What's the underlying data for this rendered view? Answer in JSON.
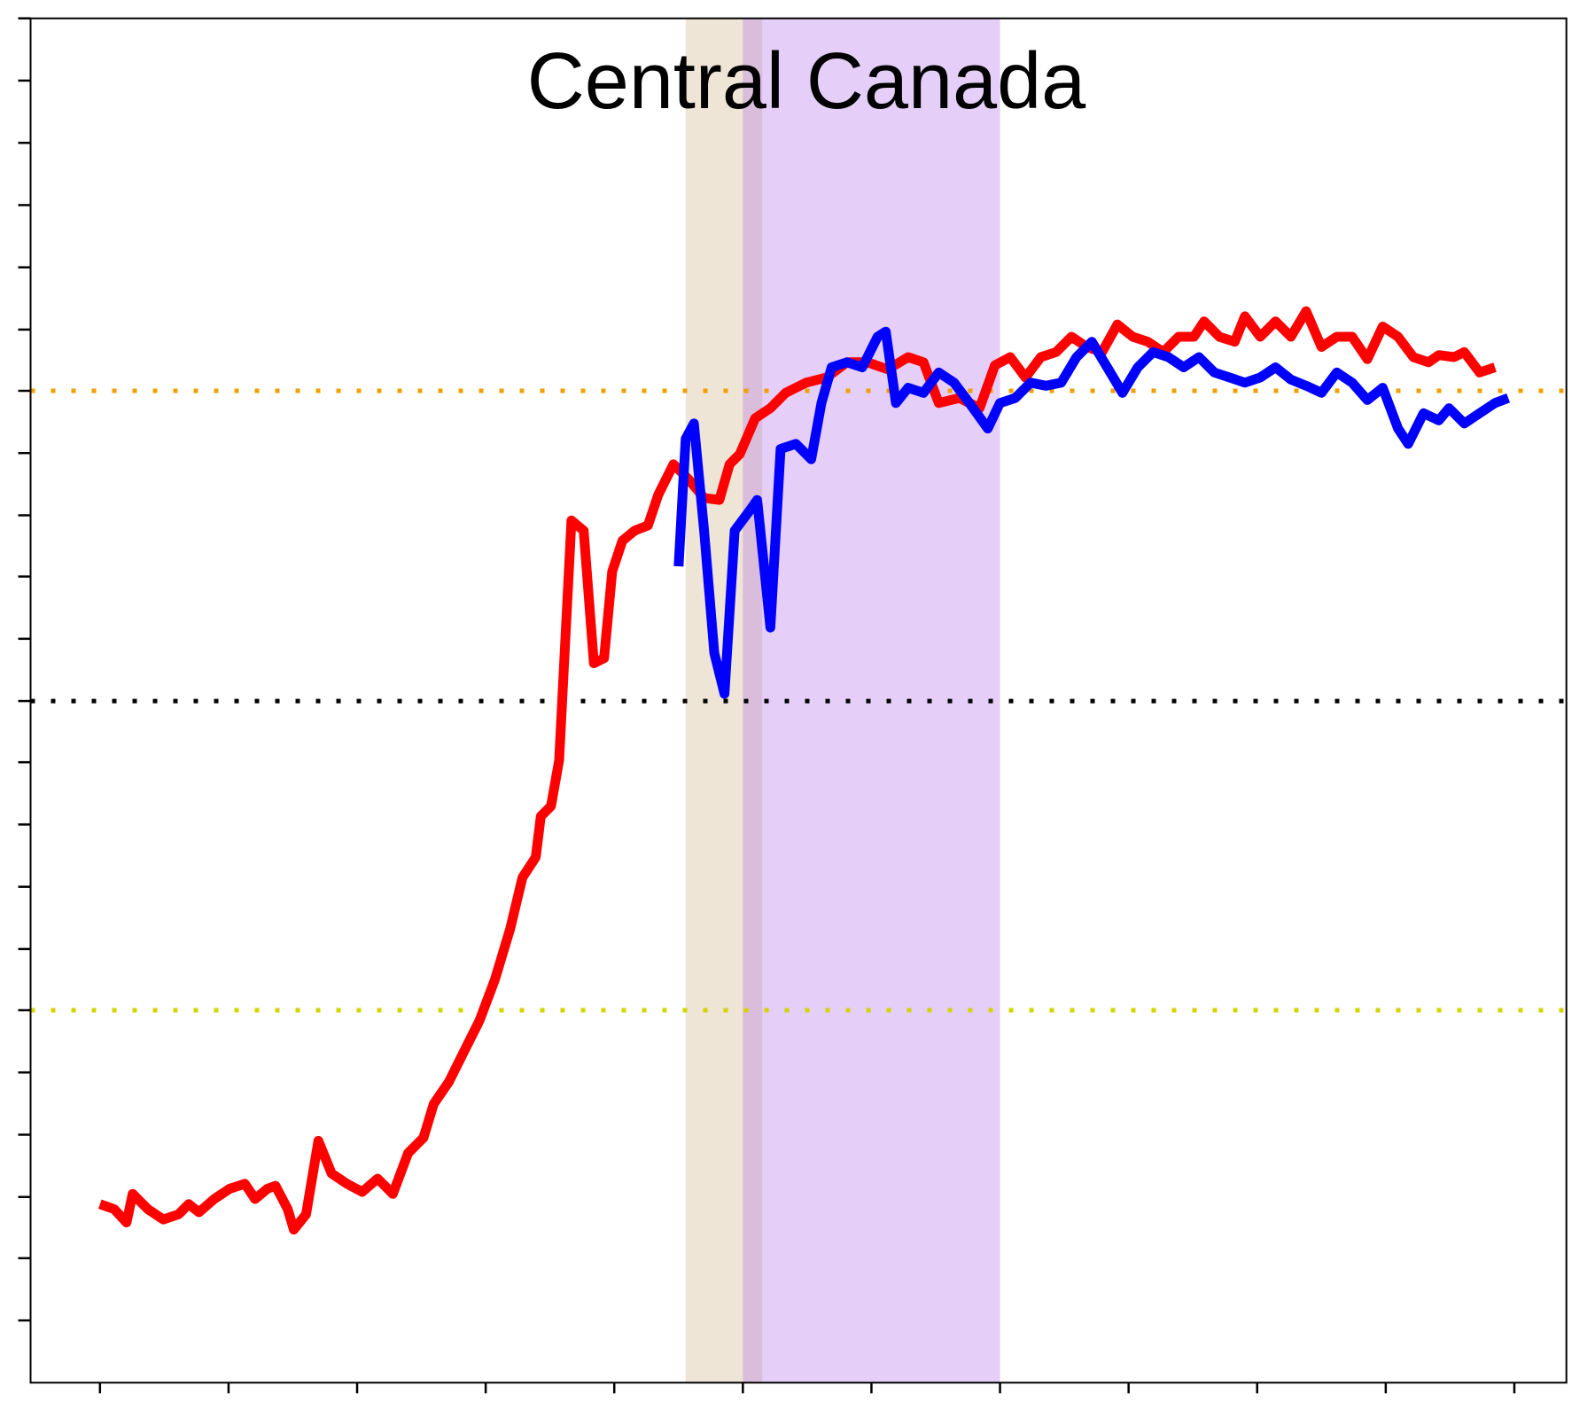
{
  "chart_data": {
    "type": "line",
    "title": "Central Canada",
    "xlim": [
      30,
      1535
    ],
    "xticks": [
      98,
      224,
      350,
      476,
      602,
      728,
      854,
      980,
      1106,
      1232,
      1358,
      1484
    ],
    "ylim": [
      0,
      1337
    ],
    "yticks": [
      61,
      122,
      182,
      243,
      304,
      365,
      425,
      486,
      547,
      608,
      668,
      729,
      790,
      850,
      911,
      972,
      1032,
      1093,
      1154,
      1215,
      1276,
      1337
    ],
    "reference_lines": [
      {
        "value": 972,
        "color": "#f0a000"
      },
      {
        "value": 668,
        "color": "#000000"
      },
      {
        "value": 365,
        "color": "#d4d400"
      }
    ],
    "spans": [
      {
        "range": [
          672,
          747
        ],
        "color": "#c8a878"
      },
      {
        "range": [
          728,
          980
        ],
        "color": "#a860e8"
      }
    ],
    "series": [
      {
        "color": "#ff0000",
        "x": [
          98,
          112,
          124,
          130,
          145,
          160,
          175,
          185,
          195,
          210,
          225,
          240,
          250,
          262,
          270,
          282,
          288,
          300,
          312,
          325,
          340,
          355,
          370,
          385,
          400,
          415,
          425,
          440,
          455,
          470,
          485,
          500,
          512,
          525,
          530,
          540,
          548,
          560,
          572,
          582,
          592,
          600,
          610,
          622,
          635,
          645,
          660,
          675,
          690,
          705,
          715,
          725,
          740,
          755,
          770,
          790,
          810,
          830,
          850,
          870,
          890,
          905,
          920,
          940,
          960,
          975,
          990,
          1005,
          1020,
          1035,
          1050,
          1065,
          1080,
          1095,
          1110,
          1125,
          1140,
          1155,
          1170,
          1180,
          1195,
          1210,
          1220,
          1235,
          1250,
          1265,
          1280,
          1295,
          1310,
          1325,
          1340,
          1355,
          1370,
          1385,
          1400,
          1410,
          1425,
          1435,
          1450,
          1465
        ],
        "values": [
          175,
          170,
          157,
          185,
          170,
          160,
          165,
          175,
          167,
          180,
          190,
          195,
          180,
          190,
          193,
          170,
          150,
          165,
          237,
          205,
          195,
          187,
          200,
          185,
          225,
          240,
          273,
          295,
          325,
          355,
          395,
          445,
          495,
          515,
          555,
          565,
          610,
          845,
          835,
          705,
          710,
          795,
          825,
          835,
          840,
          870,
          900,
          885,
          867,
          865,
          900,
          910,
          945,
          955,
          970,
          980,
          985,
          1000,
          1000,
          993,
          1005,
          1000,
          960,
          965,
          955,
          997,
          1005,
          985,
          1005,
          1010,
          1025,
          1015,
          1010,
          1037,
          1025,
          1020,
          1010,
          1025,
          1025,
          1040,
          1025,
          1020,
          1045,
          1025,
          1040,
          1025,
          1050,
          1015,
          1025,
          1025,
          1003,
          1035,
          1025,
          1005,
          1000,
          1007,
          1005,
          1010,
          990,
          995
        ]
      },
      {
        "color": "#0000ff",
        "x": [
          665,
          672,
          680,
          690,
          700,
          710,
          720,
          735,
          742,
          755,
          765,
          780,
          795,
          805,
          815,
          830,
          845,
          860,
          868,
          878,
          890,
          905,
          920,
          935,
          950,
          968,
          980,
          995,
          1010,
          1025,
          1040,
          1055,
          1070,
          1085,
          1100,
          1115,
          1130,
          1145,
          1160,
          1175,
          1190,
          1205,
          1220,
          1235,
          1250,
          1265,
          1280,
          1295,
          1310,
          1325,
          1340,
          1355,
          1370,
          1380,
          1395,
          1410,
          1420,
          1435,
          1450,
          1465,
          1478
        ],
        "values": [
          800,
          925,
          940,
          835,
          715,
          675,
          835,
          855,
          865,
          740,
          915,
          920,
          905,
          960,
          995,
          1000,
          995,
          1025,
          1030,
          960,
          975,
          970,
          990,
          980,
          960,
          935,
          960,
          965,
          980,
          977,
          980,
          1005,
          1020,
          995,
          970,
          995,
          1010,
          1005,
          995,
          1005,
          990,
          985,
          980,
          985,
          995,
          983,
          977,
          970,
          990,
          980,
          963,
          975,
          935,
          920,
          950,
          943,
          955,
          940,
          950,
          960,
          965
        ]
      }
    ]
  }
}
